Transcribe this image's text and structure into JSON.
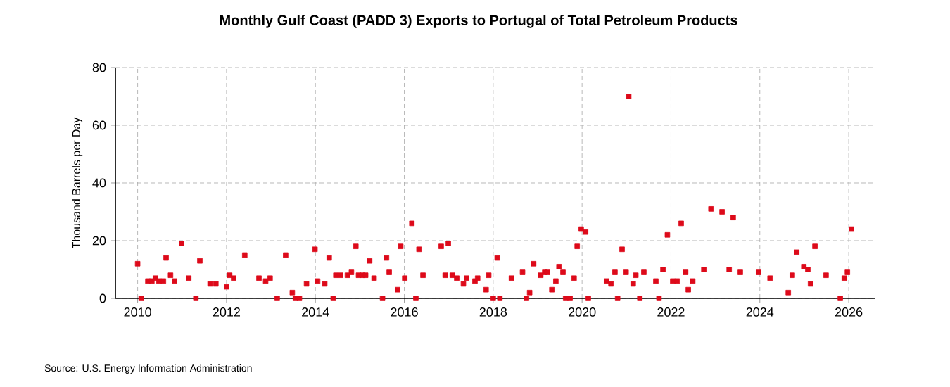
{
  "chart_data": {
    "type": "scatter",
    "title": "Monthly Gulf Coast (PADD 3) Exports to Portugal of Total Petroleum Products",
    "ylabel": "Thousand Barrels per Day",
    "annotations": [
      "Source: U.S. Energy Information Administration"
    ],
    "x": [
      2010.0,
      2010.08,
      2010.23,
      2010.32,
      2010.4,
      2010.48,
      2010.58,
      2010.64,
      2010.74,
      2010.83,
      2010.99,
      2011.15,
      2011.31,
      2011.4,
      2011.63,
      2011.76,
      2012.0,
      2012.07,
      2012.16,
      2012.41,
      2012.73,
      2012.88,
      2012.98,
      2013.14,
      2013.33,
      2013.48,
      2013.55,
      2013.64,
      2013.8,
      2013.99,
      2014.05,
      2014.21,
      2014.31,
      2014.4,
      2014.46,
      2014.56,
      2014.72,
      2014.81,
      2014.91,
      2014.97,
      2015.06,
      2015.13,
      2015.22,
      2015.32,
      2015.51,
      2015.6,
      2015.66,
      2015.85,
      2015.92,
      2016.01,
      2016.17,
      2016.26,
      2016.33,
      2016.42,
      2016.83,
      2016.92,
      2016.99,
      2017.08,
      2017.18,
      2017.33,
      2017.4,
      2017.59,
      2017.65,
      2017.84,
      2017.9,
      2018.0,
      2018.09,
      2018.15,
      2018.41,
      2018.66,
      2018.75,
      2018.82,
      2018.91,
      2019.07,
      2019.16,
      2019.22,
      2019.32,
      2019.41,
      2019.48,
      2019.57,
      2019.63,
      2019.73,
      2019.82,
      2019.89,
      2019.98,
      2020.08,
      2020.14,
      2020.55,
      2020.65,
      2020.74,
      2020.8,
      2020.9,
      2020.99,
      2021.05,
      2021.15,
      2021.21,
      2021.3,
      2021.39,
      2021.66,
      2021.73,
      2021.82,
      2021.92,
      2022.04,
      2022.14,
      2022.23,
      2022.33,
      2022.39,
      2022.49,
      2022.74,
      2022.9,
      2023.15,
      2023.31,
      2023.4,
      2023.56,
      2023.97,
      2024.23,
      2024.64,
      2024.73,
      2024.83,
      2024.99,
      2025.08,
      2025.14,
      2025.24,
      2025.49,
      2025.81,
      2025.9,
      2025.97,
      2026.06
    ],
    "series": [
      {
        "color": "#dd0a1a",
        "values": [
          12,
          0,
          6,
          6,
          7,
          6,
          6,
          14,
          8,
          6,
          19,
          7,
          0,
          13,
          5,
          5,
          4,
          8,
          7,
          15,
          7,
          6,
          7,
          0,
          15,
          2,
          0,
          0,
          5,
          17,
          6,
          5,
          14,
          0,
          8,
          8,
          8,
          9,
          18,
          8,
          8,
          8,
          13,
          7,
          0,
          14,
          9,
          3,
          18,
          7,
          26,
          0,
          17,
          8,
          18,
          8,
          19,
          8,
          7,
          5,
          7,
          6,
          7,
          3,
          8,
          0,
          14,
          0,
          7,
          9,
          0,
          2,
          12,
          8,
          9,
          9,
          3,
          6,
          11,
          9,
          0,
          0,
          7,
          18,
          24,
          23,
          0,
          6,
          5,
          9,
          0,
          17,
          9,
          70,
          5,
          8,
          0,
          9,
          6,
          0,
          10,
          22,
          6,
          6,
          26,
          9,
          3,
          6,
          10,
          31,
          30,
          10,
          28,
          9,
          9,
          7,
          2,
          8,
          16,
          11,
          10,
          5,
          18,
          8,
          0,
          7,
          9,
          24
        ]
      }
    ],
    "xlim": [
      2009.5,
      2026.6
    ],
    "xticks": [
      2010,
      2012,
      2014,
      2016,
      2018,
      2020,
      2022,
      2024,
      2026
    ],
    "ylim": [
      0,
      80
    ],
    "yticks": [
      0,
      20,
      40,
      60,
      80
    ],
    "grid": true,
    "marker": "square"
  }
}
